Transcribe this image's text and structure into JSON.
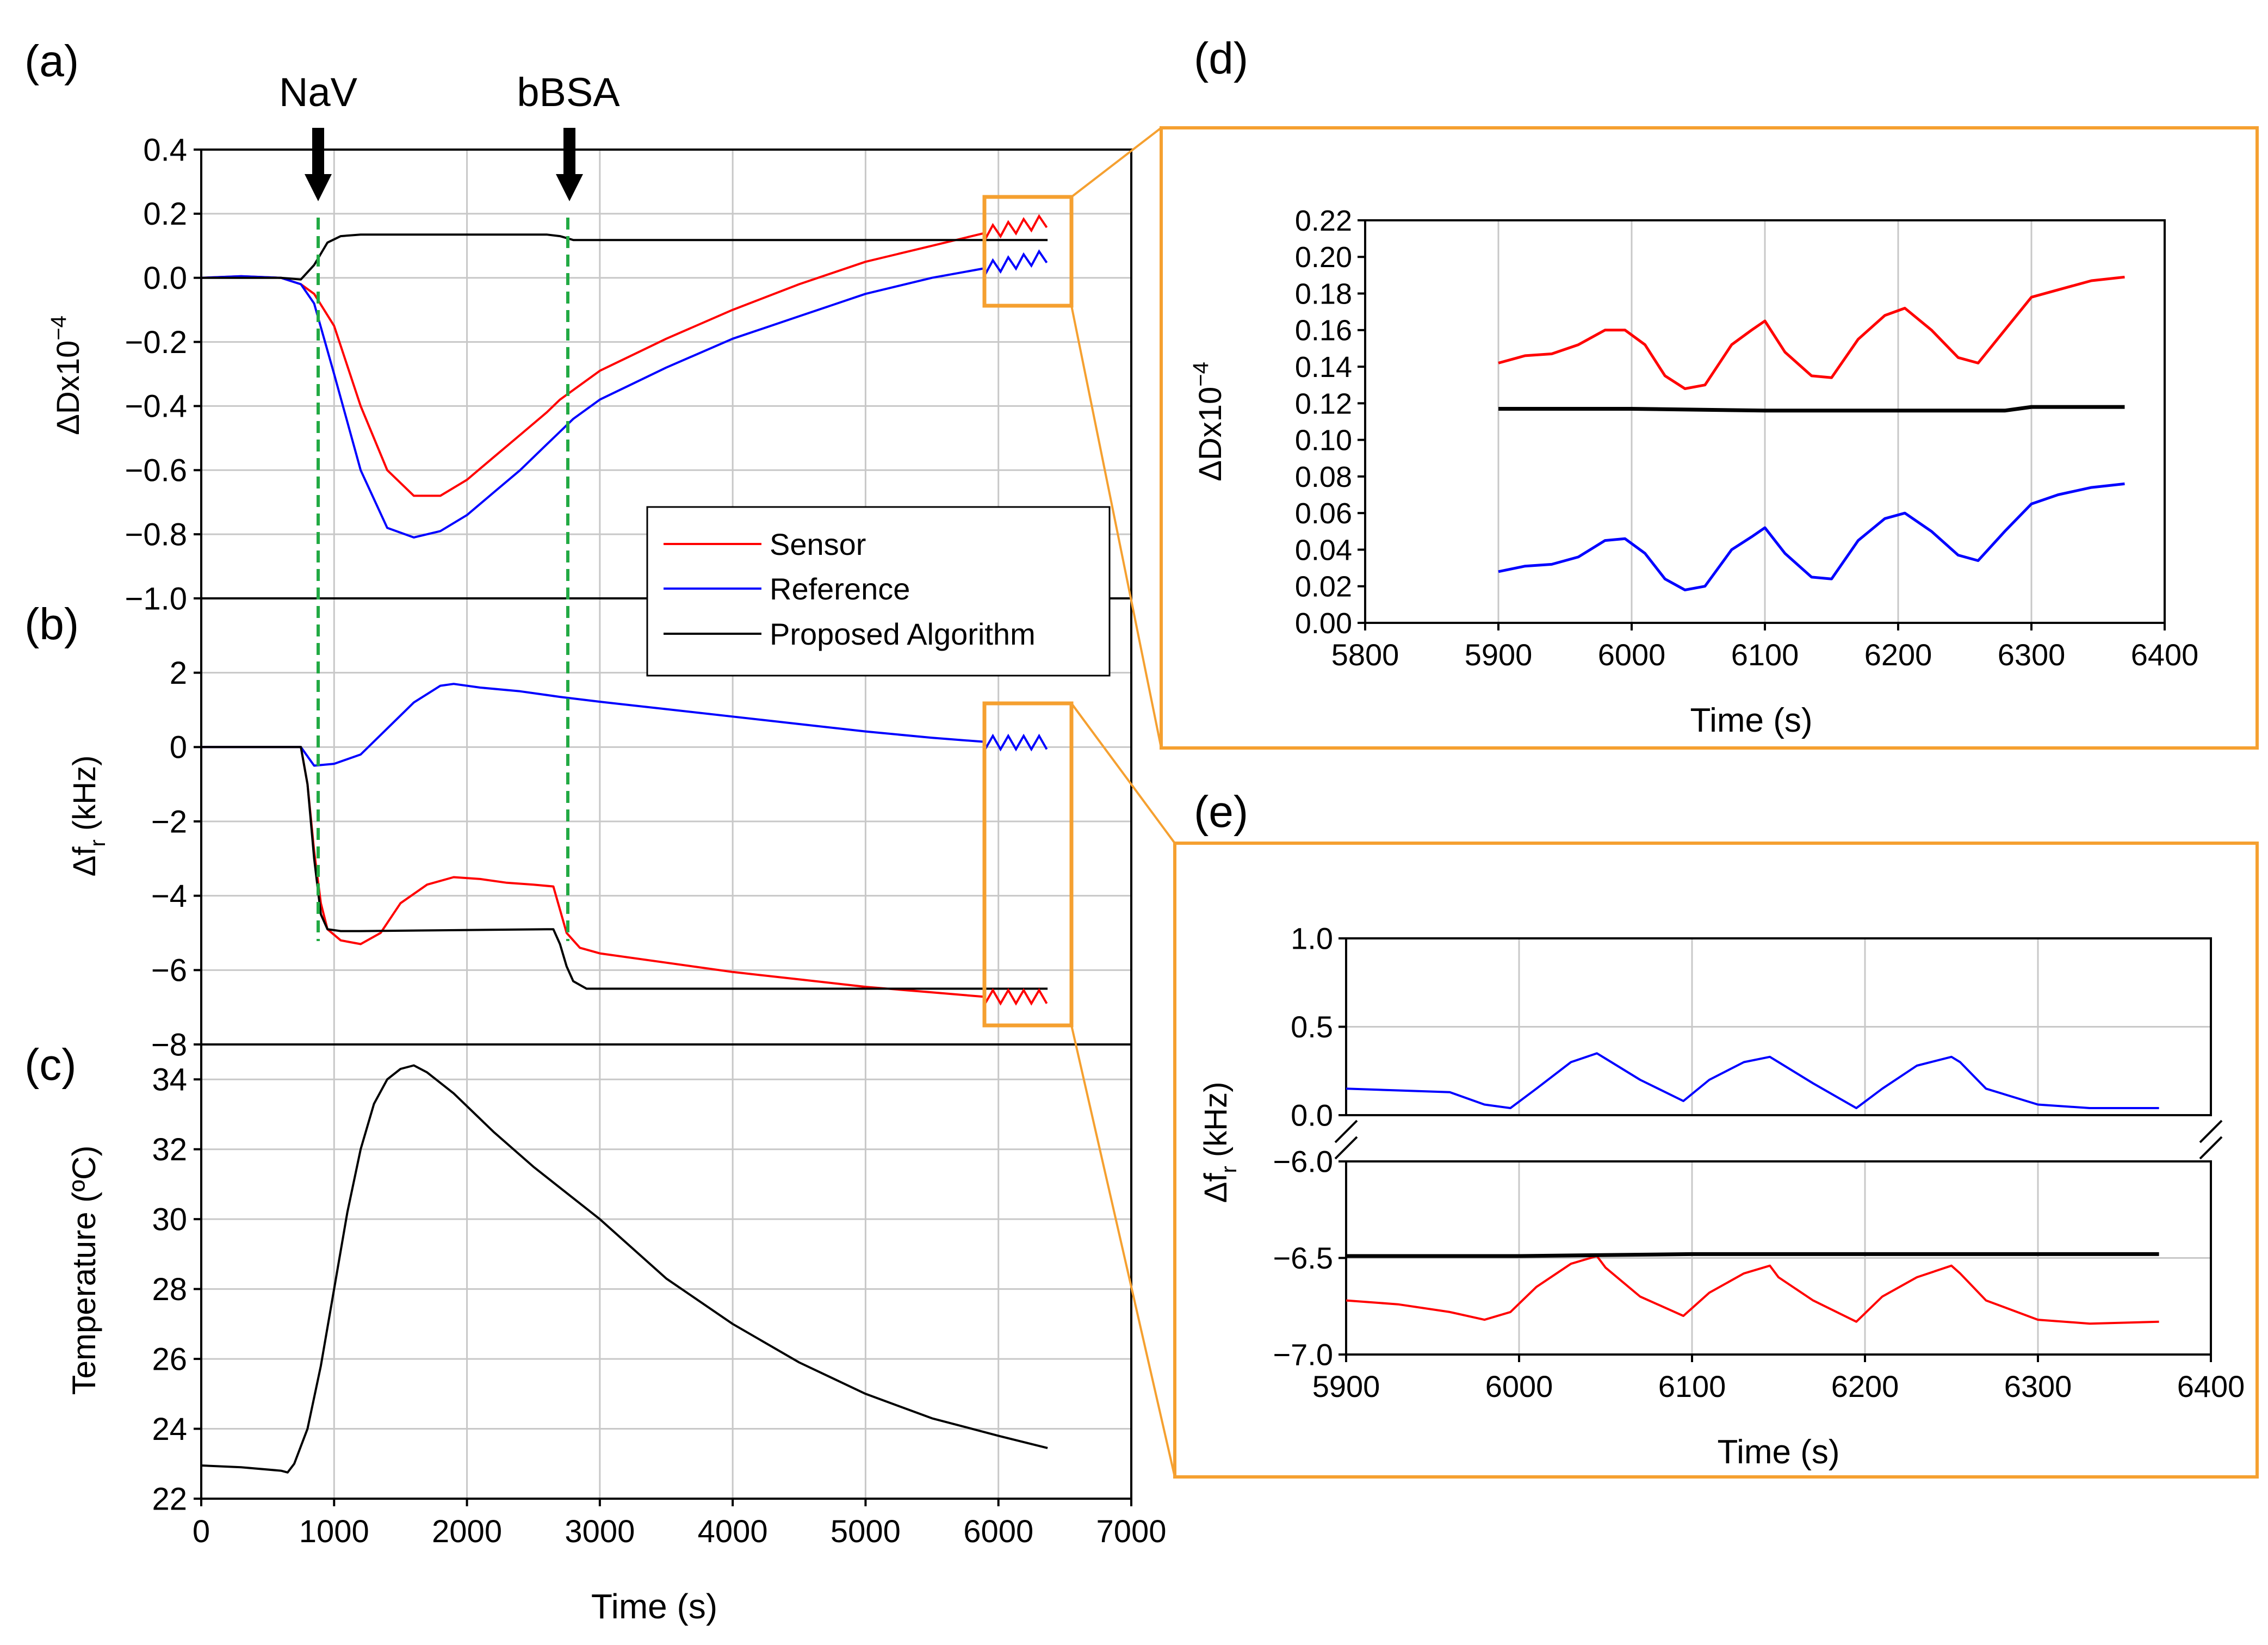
{
  "colors": {
    "sensor": "#ff0000",
    "reference": "#0000ff",
    "algorithm": "#000000",
    "marker_line": "#22aa44",
    "highlight": "#f5a030",
    "grid": "#c8c8c8"
  },
  "annotations": {
    "nav": {
      "label": "NaV",
      "time": 790
    },
    "bbsa": {
      "label": "bBSA",
      "time": 2700
    }
  },
  "legend": {
    "sensor": "Sensor",
    "reference": "Reference",
    "algorithm": "Proposed Algorithm"
  },
  "chart_data": [
    {
      "id": "a",
      "panel_label": "(a)",
      "type": "line",
      "ylabel_main": "ΔDx10",
      "ylabel_exp": "−4",
      "xlim": [
        0,
        7000
      ],
      "ylim": [
        -1.0,
        0.4
      ],
      "yticks": [
        -1.0,
        -0.8,
        -0.6,
        -0.4,
        -0.2,
        0.0,
        0.2,
        0.4
      ],
      "ytick_labels": [
        "−1.0",
        "−0.8",
        "−0.6",
        "−0.4",
        "−0.2",
        "0.0",
        "0.2",
        "0.4"
      ],
      "xticks": [
        0,
        1000,
        2000,
        3000,
        4000,
        5000,
        6000,
        7000
      ],
      "series": [
        {
          "name": "Sensor",
          "color": "#ff0000",
          "x": [
            0,
            300,
            600,
            750,
            850,
            1000,
            1200,
            1400,
            1600,
            1800,
            2000,
            2200,
            2400,
            2600,
            2700,
            2800,
            3000,
            3500,
            4000,
            4500,
            5000,
            5500,
            5900
          ],
          "y": [
            0.0,
            0.005,
            0.0,
            -0.02,
            -0.05,
            -0.15,
            -0.4,
            -0.6,
            -0.68,
            -0.68,
            -0.63,
            -0.56,
            -0.49,
            -0.42,
            -0.38,
            -0.35,
            -0.29,
            -0.19,
            -0.1,
            -0.02,
            0.05,
            0.1,
            0.14
          ]
        },
        {
          "name": "Reference",
          "color": "#0000ff",
          "x": [
            0,
            300,
            600,
            750,
            850,
            1000,
            1200,
            1400,
            1600,
            1800,
            2000,
            2200,
            2400,
            2600,
            2700,
            2800,
            3000,
            3500,
            4000,
            4500,
            5000,
            5500,
            5900
          ],
          "y": [
            0.0,
            0.005,
            0.0,
            -0.02,
            -0.08,
            -0.3,
            -0.6,
            -0.78,
            -0.81,
            -0.79,
            -0.74,
            -0.67,
            -0.6,
            -0.52,
            -0.48,
            -0.44,
            -0.38,
            -0.28,
            -0.19,
            -0.12,
            -0.05,
            0.0,
            0.03
          ]
        },
        {
          "name": "Proposed Algorithm",
          "color": "#000000",
          "x": [
            0,
            600,
            750,
            850,
            950,
            1050,
            1200,
            2600,
            2700,
            2800,
            6370
          ],
          "y": [
            0.0,
            0.0,
            -0.005,
            0.04,
            0.11,
            0.13,
            0.135,
            0.135,
            0.13,
            0.118,
            0.118
          ]
        }
      ]
    },
    {
      "id": "b",
      "panel_label": "(b)",
      "type": "line",
      "ylabel_main": "Δf",
      "ylabel_sub": "r",
      "ylabel_unit": " (kHz)",
      "xlim": [
        0,
        7000
      ],
      "ylim": [
        -8,
        4
      ],
      "yticks": [
        -8,
        -6,
        -4,
        -2,
        0,
        2
      ],
      "ytick_labels": [
        "−8",
        "−6",
        "−4",
        "−2",
        "0",
        "2"
      ],
      "xticks": [
        0,
        1000,
        2000,
        3000,
        4000,
        5000,
        6000,
        7000
      ],
      "series": [
        {
          "name": "Sensor",
          "color": "#ff0000",
          "x": [
            0,
            600,
            750,
            800,
            850,
            900,
            950,
            1050,
            1200,
            1350,
            1500,
            1700,
            1900,
            2100,
            2300,
            2500,
            2650,
            2750,
            2850,
            3000,
            3500,
            4000,
            4500,
            5000,
            5500,
            5900
          ],
          "y": [
            0.0,
            0.0,
            0.0,
            -1.0,
            -2.8,
            -4.2,
            -4.9,
            -5.2,
            -5.3,
            -5.0,
            -4.2,
            -3.7,
            -3.5,
            -3.55,
            -3.65,
            -3.7,
            -3.75,
            -5.0,
            -5.4,
            -5.55,
            -5.8,
            -6.05,
            -6.25,
            -6.45,
            -6.6,
            -6.72
          ]
        },
        {
          "name": "Reference",
          "color": "#0000ff",
          "x": [
            0,
            600,
            750,
            850,
            1000,
            1200,
            1400,
            1600,
            1800,
            1900,
            2100,
            2400,
            2700,
            3000,
            3500,
            4000,
            4500,
            5000,
            5500,
            5900
          ],
          "y": [
            0.0,
            0.0,
            0.0,
            -0.5,
            -0.45,
            -0.2,
            0.5,
            1.2,
            1.65,
            1.7,
            1.6,
            1.5,
            1.35,
            1.22,
            1.02,
            0.82,
            0.62,
            0.42,
            0.25,
            0.14
          ]
        },
        {
          "name": "Proposed Algorithm",
          "color": "#000000",
          "x": [
            0,
            600,
            750,
            800,
            850,
            900,
            950,
            1050,
            1200,
            2600,
            2650,
            2700,
            2750,
            2800,
            2900,
            6370
          ],
          "y": [
            0.0,
            0.0,
            0.0,
            -1.0,
            -3.0,
            -4.5,
            -4.9,
            -4.95,
            -4.95,
            -4.9,
            -4.9,
            -5.3,
            -5.9,
            -6.3,
            -6.5,
            -6.5
          ]
        }
      ]
    },
    {
      "id": "c",
      "panel_label": "(c)",
      "type": "line",
      "ylabel_main": "Temperature (ºC)",
      "xlabel": "Time (s)",
      "xlim": [
        0,
        7000
      ],
      "ylim": [
        22,
        35
      ],
      "yticks": [
        22,
        24,
        26,
        28,
        30,
        32,
        34
      ],
      "ytick_labels": [
        "22",
        "24",
        "26",
        "28",
        "30",
        "32",
        "34"
      ],
      "xticks": [
        0,
        1000,
        2000,
        3000,
        4000,
        5000,
        6000,
        7000
      ],
      "xtick_labels": [
        "0",
        "1000",
        "2000",
        "3000",
        "4000",
        "5000",
        "6000",
        "7000"
      ],
      "series": [
        {
          "name": "Temperature",
          "color": "#000000",
          "x": [
            0,
            300,
            600,
            650,
            700,
            800,
            900,
            1000,
            1100,
            1200,
            1300,
            1400,
            1500,
            1600,
            1700,
            1900,
            2200,
            2500,
            3000,
            3500,
            4000,
            4500,
            5000,
            5500,
            6000,
            6370
          ],
          "y": [
            22.95,
            22.9,
            22.8,
            22.75,
            23.0,
            24.0,
            25.8,
            28.0,
            30.2,
            32.0,
            33.3,
            34.0,
            34.3,
            34.4,
            34.2,
            33.6,
            32.5,
            31.5,
            30.0,
            28.3,
            27.0,
            25.9,
            25.0,
            24.3,
            23.8,
            23.45
          ]
        }
      ]
    },
    {
      "id": "d",
      "panel_label": "(d)",
      "type": "line",
      "ylabel_main": "ΔDx10",
      "ylabel_exp": "−4",
      "xlabel": "Time (s)",
      "xlim": [
        5800,
        6400
      ],
      "ylim": [
        0.0,
        0.22
      ],
      "yticks": [
        0.0,
        0.02,
        0.04,
        0.06,
        0.08,
        0.1,
        0.12,
        0.14,
        0.16,
        0.18,
        0.2,
        0.22
      ],
      "ytick_labels": [
        "0.00",
        "0.02",
        "0.04",
        "0.06",
        "0.08",
        "0.10",
        "0.12",
        "0.14",
        "0.16",
        "0.18",
        "0.20",
        "0.22"
      ],
      "xticks": [
        5800,
        5900,
        6000,
        6100,
        6200,
        6300,
        6400
      ],
      "xtick_labels": [
        "5800",
        "5900",
        "6000",
        "6100",
        "6200",
        "6300",
        "6400"
      ],
      "series": [
        {
          "name": "Sensor",
          "color": "#ff0000",
          "x": [
            5900,
            5920,
            5940,
            5960,
            5980,
            5995,
            6010,
            6025,
            6040,
            6055,
            6075,
            6090,
            6100,
            6115,
            6135,
            6150,
            6170,
            6190,
            6205,
            6225,
            6245,
            6260,
            6280,
            6300,
            6320,
            6345,
            6370
          ],
          "y": [
            0.142,
            0.146,
            0.147,
            0.152,
            0.16,
            0.16,
            0.152,
            0.135,
            0.128,
            0.13,
            0.152,
            0.16,
            0.165,
            0.148,
            0.135,
            0.134,
            0.155,
            0.168,
            0.172,
            0.16,
            0.145,
            0.142,
            0.16,
            0.178,
            0.182,
            0.187,
            0.189
          ]
        },
        {
          "name": "Reference",
          "color": "#0000ff",
          "x": [
            5900,
            5920,
            5940,
            5960,
            5980,
            5995,
            6010,
            6025,
            6040,
            6055,
            6075,
            6090,
            6100,
            6115,
            6135,
            6150,
            6170,
            6190,
            6205,
            6225,
            6245,
            6260,
            6280,
            6300,
            6320,
            6345,
            6370
          ],
          "y": [
            0.028,
            0.031,
            0.032,
            0.036,
            0.045,
            0.046,
            0.038,
            0.024,
            0.018,
            0.02,
            0.04,
            0.047,
            0.052,
            0.038,
            0.025,
            0.024,
            0.045,
            0.057,
            0.06,
            0.05,
            0.037,
            0.034,
            0.05,
            0.065,
            0.07,
            0.074,
            0.076
          ]
        },
        {
          "name": "Proposed Algorithm",
          "color": "#000000",
          "x": [
            5900,
            6000,
            6100,
            6200,
            6280,
            6300,
            6370
          ],
          "y": [
            0.117,
            0.117,
            0.116,
            0.116,
            0.116,
            0.118,
            0.118
          ]
        }
      ]
    },
    {
      "id": "e",
      "panel_label": "(e)",
      "type": "line",
      "ylabel_main": "Δf",
      "ylabel_sub": "r",
      "ylabel_unit": " (kHz)",
      "xlabel": "Time (s)",
      "xlim": [
        5900,
        6400
      ],
      "broken_axis": true,
      "ylim_upper": [
        0.0,
        1.0
      ],
      "ylim_lower": [
        -7.0,
        -6.0
      ],
      "yticks_upper": [
        0.0,
        0.5,
        1.0
      ],
      "ytick_labels_upper": [
        "0.0",
        "0.5",
        "1.0"
      ],
      "yticks_lower": [
        -7.0,
        -6.5,
        -6.0
      ],
      "ytick_labels_lower": [
        "−7.0",
        "−6.5",
        "−6.0"
      ],
      "xticks": [
        5900,
        6000,
        6100,
        6200,
        6300,
        6400
      ],
      "xtick_labels": [
        "5900",
        "6000",
        "6100",
        "6200",
        "6300",
        "6400"
      ],
      "series": [
        {
          "name": "Reference",
          "color": "#0000ff",
          "x": [
            5900,
            5930,
            5960,
            5980,
            5995,
            6010,
            6030,
            6045,
            6050,
            6070,
            6095,
            6110,
            6130,
            6145,
            6150,
            6170,
            6195,
            6210,
            6230,
            6250,
            6255,
            6270,
            6300,
            6330,
            6370
          ],
          "y": [
            0.15,
            0.14,
            0.13,
            0.06,
            0.04,
            0.15,
            0.3,
            0.35,
            0.32,
            0.2,
            0.08,
            0.2,
            0.3,
            0.33,
            0.3,
            0.18,
            0.04,
            0.15,
            0.28,
            0.33,
            0.3,
            0.15,
            0.06,
            0.04,
            0.04
          ]
        },
        {
          "name": "Sensor",
          "color": "#ff0000",
          "x": [
            5900,
            5930,
            5960,
            5980,
            5995,
            6010,
            6030,
            6045,
            6050,
            6070,
            6095,
            6110,
            6130,
            6145,
            6150,
            6170,
            6195,
            6210,
            6230,
            6250,
            6255,
            6270,
            6300,
            6330,
            6370
          ],
          "y": [
            -6.72,
            -6.74,
            -6.78,
            -6.82,
            -6.78,
            -6.65,
            -6.53,
            -6.49,
            -6.55,
            -6.7,
            -6.8,
            -6.68,
            -6.58,
            -6.54,
            -6.6,
            -6.72,
            -6.83,
            -6.7,
            -6.6,
            -6.54,
            -6.58,
            -6.72,
            -6.82,
            -6.84,
            -6.83
          ]
        },
        {
          "name": "Proposed Algorithm",
          "color": "#000000",
          "x": [
            5900,
            6000,
            6100,
            6200,
            6300,
            6370
          ],
          "y": [
            -6.49,
            -6.49,
            -6.48,
            -6.48,
            -6.48,
            -6.48
          ]
        }
      ]
    }
  ]
}
